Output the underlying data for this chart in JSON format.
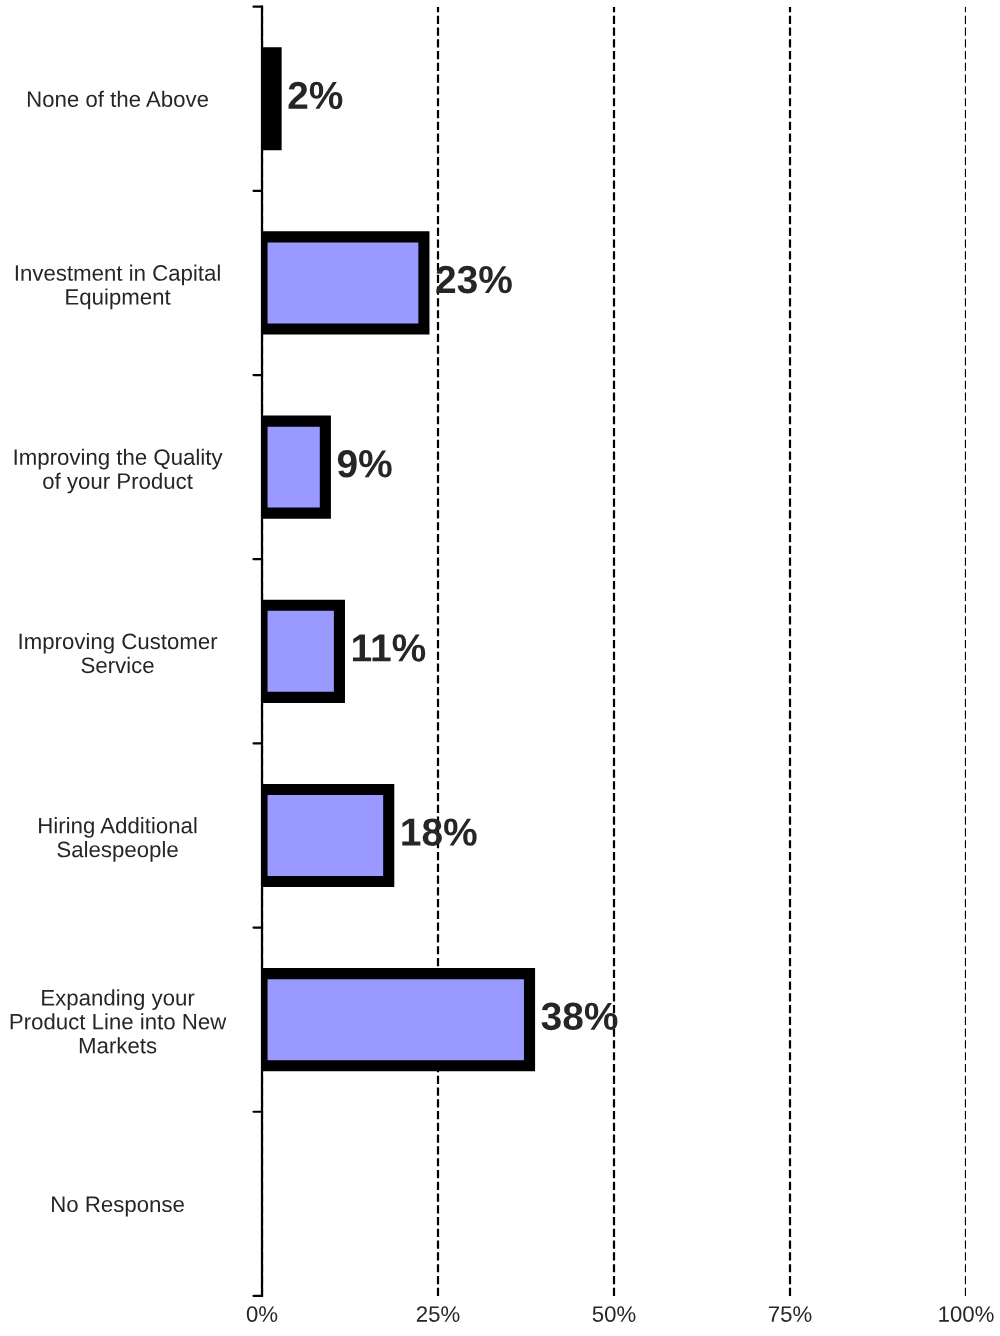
{
  "chart_data": {
    "type": "bar",
    "orientation": "horizontal",
    "categories": [
      "None of the Above",
      "Investment in Capital\nEquipment",
      "Improving the Quality\nof your Product",
      "Improving Customer\nService",
      "Hiring Additional\nSalespeople",
      "Expanding your\nProduct Line into New\nMarkets",
      "No Response"
    ],
    "values": [
      2,
      23,
      9,
      11,
      18,
      38,
      null
    ],
    "colors": [
      "#000000",
      "#9999ff",
      "#9999ff",
      "#9999ff",
      "#9999ff",
      "#9999ff",
      "#9999ff"
    ],
    "value_labels": [
      "2%",
      "23%",
      "9%",
      "11%",
      "18%",
      "38%",
      null
    ],
    "xlim": [
      0,
      100
    ],
    "xticks": [
      {
        "value": 0,
        "label": "0%"
      },
      {
        "value": 25,
        "label": "25%"
      },
      {
        "value": 50,
        "label": "50%"
      },
      {
        "value": 75,
        "label": "75%"
      },
      {
        "value": 100,
        "label": "100%"
      }
    ],
    "grid": "x",
    "line_style": "dashed"
  }
}
